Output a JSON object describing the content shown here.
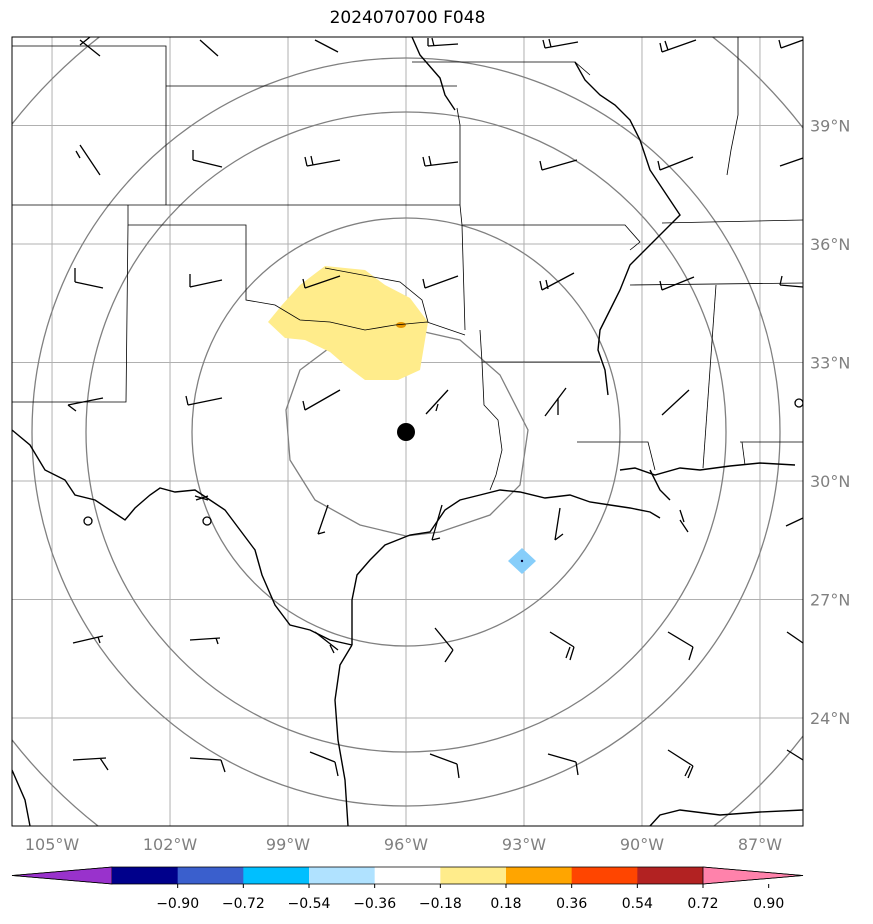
{
  "title": "2024070700 F048",
  "map": {
    "lon_range": [
      -106,
      -85
    ],
    "lat_range": [
      21,
      41
    ],
    "grid_lons": [
      -105,
      -102,
      -99,
      -96,
      -93,
      -90,
      -87
    ],
    "grid_lats": [
      24,
      27,
      30,
      33,
      36,
      39
    ],
    "lon_labels": [
      "105°W",
      "102°W",
      "99°W",
      "96°W",
      "93°W",
      "90°W",
      "87°W"
    ],
    "lat_labels": [
      "24°N",
      "27°N",
      "30°N",
      "33°N",
      "36°N",
      "39°N"
    ],
    "center_marker": {
      "lon": -96.0,
      "lat": 31.2
    },
    "range_rings": "concentric circles around center",
    "ring_color": "#808080",
    "grid_color": "#b0b0b0"
  },
  "colorbar": {
    "colors": [
      "#9932cc",
      "#00008b",
      "#3a5fcd",
      "#00bfff",
      "#b0e2ff",
      "#ffffff",
      "#ffec8b",
      "#ffa500",
      "#ff4500",
      "#b22222",
      "#ff82ab"
    ],
    "labels": [
      "−0.90",
      "−0.72",
      "−0.54",
      "−0.36",
      "−0.18",
      "0.18",
      "0.36",
      "0.54",
      "0.72",
      "0.90"
    ]
  }
}
